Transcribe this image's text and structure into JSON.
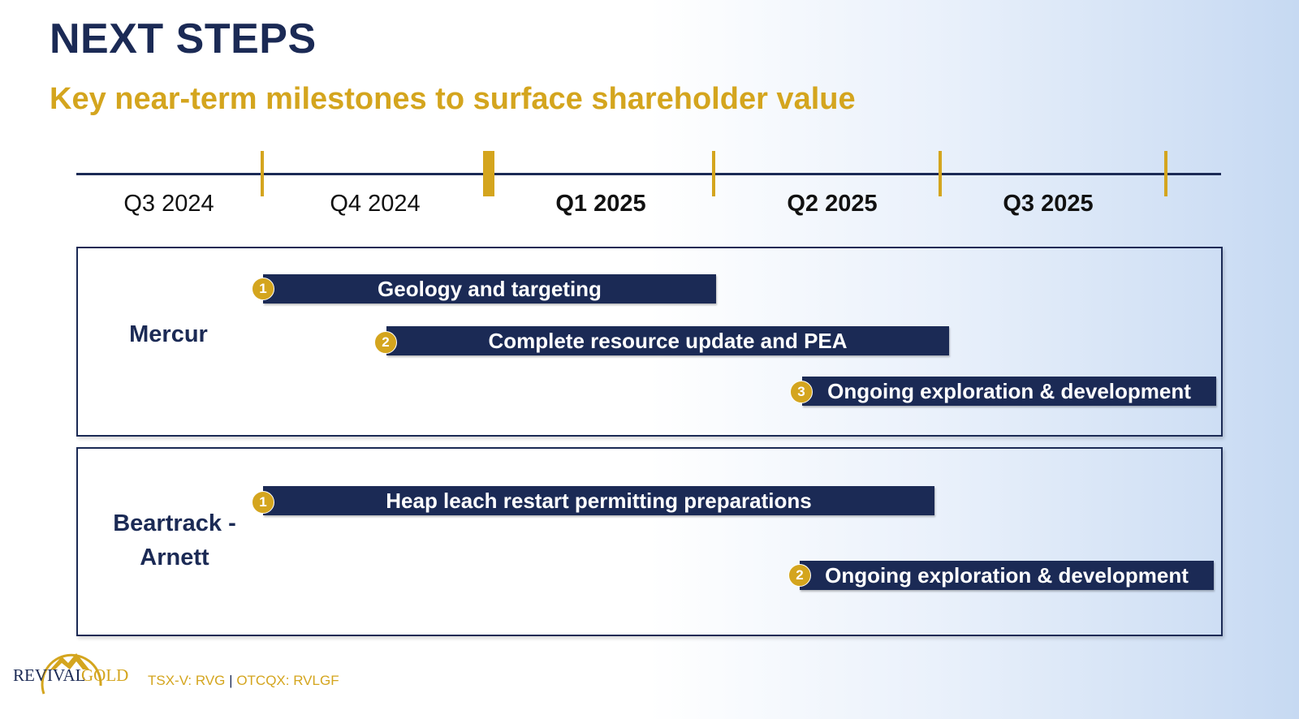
{
  "slide": {
    "title": "NEXT STEPS",
    "subtitle": "Key near-term milestones to surface shareholder value"
  },
  "timeline": {
    "quarters": [
      {
        "label": "Q3 2024",
        "bold": false
      },
      {
        "label": "Q4 2024",
        "bold": false
      },
      {
        "label": "Q1 2025",
        "bold": true
      },
      {
        "label": "Q2 2025",
        "bold": true
      },
      {
        "label": "Q3 2025",
        "bold": true
      }
    ]
  },
  "projects": [
    {
      "name": "Mercur",
      "tasks": [
        {
          "number": "1",
          "label": "Geology and targeting"
        },
        {
          "number": "2",
          "label": "Complete resource update and PEA"
        },
        {
          "number": "3",
          "label": "Ongoing exploration & development"
        }
      ]
    },
    {
      "name": "Beartrack - Arnett",
      "name_line1": "Beartrack -",
      "name_line2": "Arnett",
      "tasks": [
        {
          "number": "1",
          "label": "Heap leach restart permitting preparations"
        },
        {
          "number": "2",
          "label": "Ongoing exploration & development"
        }
      ]
    }
  ],
  "footer": {
    "logo_text_1": "REVIVAL",
    "logo_text_2": "GOLD",
    "ticker_1": "TSX-V: RVG",
    "ticker_sep": "|",
    "ticker_2": "OTCQX: RVLGF"
  },
  "colors": {
    "navy": "#1b2a55",
    "gold": "#d4a51e"
  }
}
